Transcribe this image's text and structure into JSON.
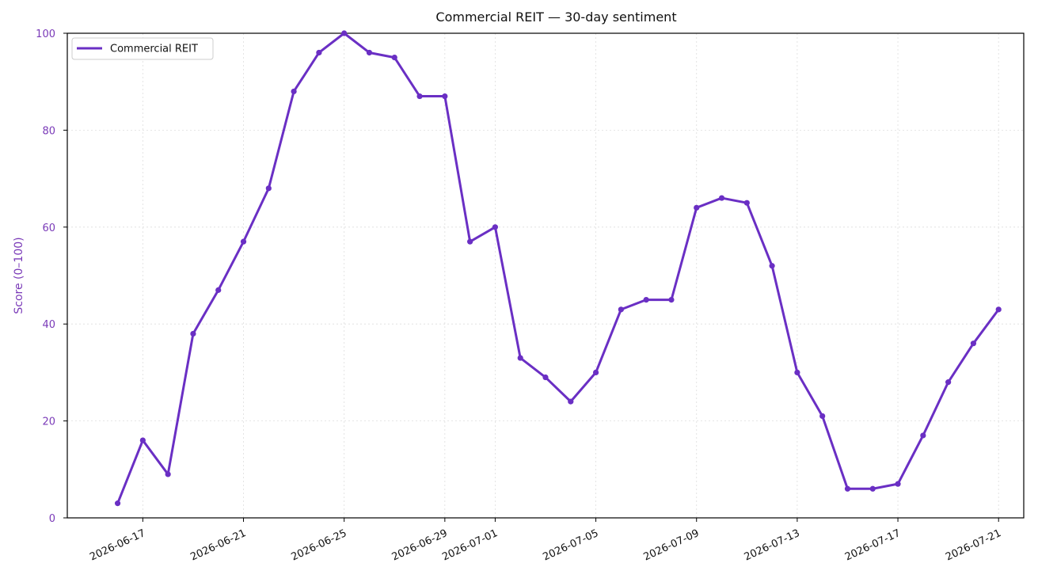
{
  "chart_data": {
    "type": "line",
    "title": "Commercial REIT — 30-day sentiment",
    "xlabel": "",
    "ylabel": "Score (0–100)",
    "ylim": [
      0,
      100
    ],
    "yticks": [
      0,
      20,
      40,
      60,
      80,
      100
    ],
    "xlim": [
      "2026-06-14",
      "2026-07-22"
    ],
    "xticks": [
      "2026-06-17",
      "2026-06-21",
      "2026-06-25",
      "2026-06-29",
      "2026-07-01",
      "2026-07-05",
      "2026-07-09",
      "2026-07-13",
      "2026-07-17",
      "2026-07-21"
    ],
    "grid": true,
    "legend": "top-left",
    "x": [
      "2026-06-16",
      "2026-06-17",
      "2026-06-18",
      "2026-06-19",
      "2026-06-20",
      "2026-06-21",
      "2026-06-22",
      "2026-06-23",
      "2026-06-24",
      "2026-06-25",
      "2026-06-26",
      "2026-06-27",
      "2026-06-28",
      "2026-06-29",
      "2026-06-30",
      "2026-07-01",
      "2026-07-02",
      "2026-07-03",
      "2026-07-04",
      "2026-07-05",
      "2026-07-06",
      "2026-07-07",
      "2026-07-08",
      "2026-07-09",
      "2026-07-10",
      "2026-07-11",
      "2026-07-12",
      "2026-07-13",
      "2026-07-14",
      "2026-07-15",
      "2026-07-16",
      "2026-07-17",
      "2026-07-18",
      "2026-07-19",
      "2026-07-20",
      "2026-07-21"
    ],
    "series": [
      {
        "name": "Commercial REIT",
        "color": "#6a2fc4",
        "values": [
          3,
          16,
          9,
          38,
          47,
          57,
          68,
          88,
          96,
          100,
          96,
          95,
          87,
          87,
          57,
          60,
          33,
          29,
          24,
          30,
          43,
          45,
          45,
          64,
          66,
          65,
          52,
          30,
          21,
          6,
          6,
          7,
          17,
          28,
          36,
          43
        ]
      }
    ],
    "axis_color": "#7a3ab8"
  }
}
